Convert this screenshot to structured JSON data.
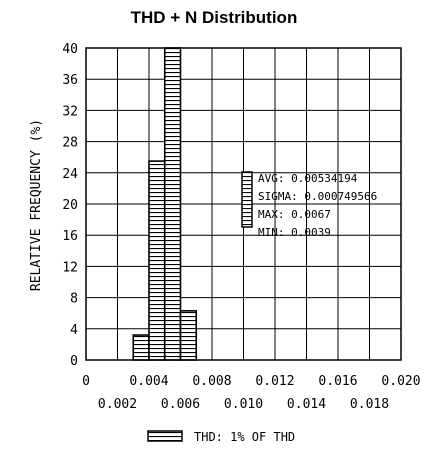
{
  "chart_data": {
    "type": "bar",
    "title": "THD + N Distribution",
    "xlabel": "",
    "ylabel": "RELATIVE FREQUENCY (%)",
    "xlim": [
      0,
      0.02
    ],
    "ylim": [
      0,
      40
    ],
    "x_ticks_upper": [
      "0",
      "0.004",
      "0.008",
      "0.012",
      "0.016",
      "0.020"
    ],
    "x_ticks_lower": [
      "0.002",
      "0.006",
      "0.010",
      "0.014",
      "0.018"
    ],
    "y_ticks": [
      "0",
      "4",
      "8",
      "12",
      "16",
      "20",
      "24",
      "28",
      "32",
      "36",
      "40"
    ],
    "grid": true,
    "bins": [
      {
        "x_start": 0.003,
        "x_end": 0.004,
        "value": 3.2
      },
      {
        "x_start": 0.004,
        "x_end": 0.005,
        "value": 25.5
      },
      {
        "x_start": 0.005,
        "x_end": 0.006,
        "value": 40
      },
      {
        "x_start": 0.006,
        "x_end": 0.007,
        "value": 6.3
      }
    ],
    "stats": [
      "AVG: 0.00534194",
      "SIGMA: 0.000749566",
      "MAX: 0.0067",
      "MIN: 0.0039"
    ],
    "legend": {
      "label": "THD: 1% OF THD",
      "placement": "bottom-center"
    }
  }
}
